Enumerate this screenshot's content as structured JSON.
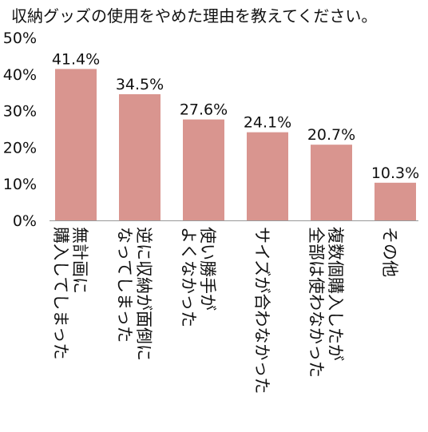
{
  "chart_data": {
    "type": "bar",
    "title": "収納グッズの使用をやめた理由を教えてください。",
    "categories": [
      [
        "無計画に",
        "購入してしまった"
      ],
      [
        "逆に収納が面倒に",
        "なってしまった"
      ],
      [
        "使い勝手が",
        "よくなかった"
      ],
      [
        "サイズが合わなかった"
      ],
      [
        "複数個購入したが",
        "全部は使わなかった"
      ],
      [
        "その他"
      ]
    ],
    "values": [
      41.4,
      34.5,
      27.6,
      24.1,
      20.7,
      10.3
    ],
    "value_labels": [
      "41.4%",
      "34.5%",
      "27.6%",
      "24.1%",
      "20.7%",
      "10.3%"
    ],
    "y_ticks": [
      "0%",
      "10%",
      "20%",
      "30%",
      "40%",
      "50%"
    ],
    "ylim": [
      0,
      50
    ],
    "grid": false,
    "bar_color": "#d9958f"
  }
}
